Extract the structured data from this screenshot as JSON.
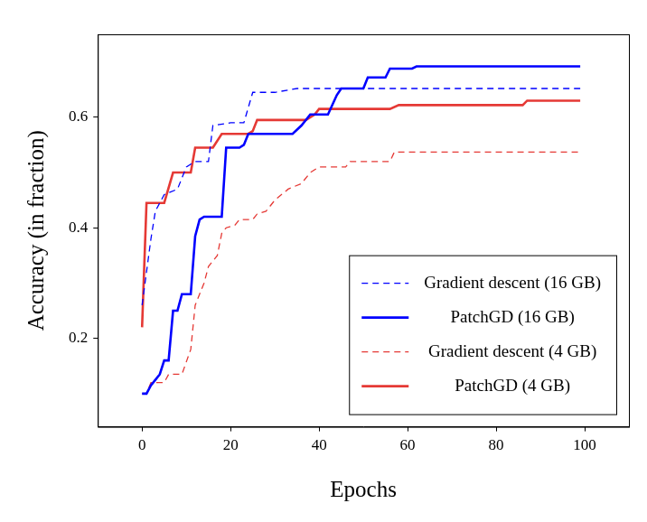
{
  "chart_data": {
    "type": "line",
    "x_label": "Epochs",
    "y_label": "Accuracy (in fraction)",
    "xlim": [
      -10,
      110
    ],
    "xticks": [
      0,
      20,
      40,
      60,
      80,
      100
    ],
    "ylim": [
      0.04,
      0.75
    ],
    "yticks": [
      0.2,
      0.4,
      0.6
    ],
    "grid": false,
    "legend": "lower right",
    "series": [
      {
        "name": "Gradient descent (16 GB)",
        "color": "#0000ff",
        "line_style": "dashed",
        "x": [
          0,
          2,
          3,
          5,
          8,
          10,
          12,
          15,
          16,
          20,
          23,
          25,
          30,
          35,
          99
        ],
        "values": [
          0.26,
          0.38,
          0.43,
          0.46,
          0.47,
          0.51,
          0.52,
          0.52,
          0.585,
          0.59,
          0.59,
          0.645,
          0.645,
          0.652,
          0.652
        ]
      },
      {
        "name": "PatchGD (16 GB)",
        "color": "#0000ff",
        "line_style": "solid",
        "x": [
          0,
          1,
          2,
          3,
          4,
          5,
          6,
          7,
          8,
          9,
          11,
          12,
          13,
          14,
          18,
          19,
          22,
          23,
          24,
          34,
          36,
          38,
          42,
          44,
          45,
          50,
          51,
          55,
          56,
          61,
          62,
          99
        ],
        "values": [
          0.1,
          0.1,
          0.115,
          0.125,
          0.135,
          0.16,
          0.16,
          0.25,
          0.25,
          0.28,
          0.28,
          0.385,
          0.415,
          0.42,
          0.42,
          0.545,
          0.545,
          0.55,
          0.57,
          0.57,
          0.585,
          0.605,
          0.605,
          0.64,
          0.652,
          0.652,
          0.672,
          0.672,
          0.688,
          0.688,
          0.692,
          0.692
        ]
      },
      {
        "name": "Gradient descent (4 GB)",
        "color": "#e53935",
        "line_style": "dashed",
        "x": [
          0,
          1,
          2,
          5,
          6,
          9,
          11,
          12,
          14,
          15,
          17,
          18,
          19,
          21,
          22,
          25,
          26,
          28,
          30,
          33,
          36,
          38,
          40,
          46,
          47,
          56,
          57,
          99
        ],
        "values": [
          0.1,
          0.1,
          0.12,
          0.12,
          0.135,
          0.135,
          0.18,
          0.26,
          0.3,
          0.33,
          0.35,
          0.39,
          0.4,
          0.405,
          0.415,
          0.415,
          0.425,
          0.43,
          0.45,
          0.47,
          0.48,
          0.5,
          0.51,
          0.51,
          0.52,
          0.52,
          0.537,
          0.537
        ]
      },
      {
        "name": "PatchGD (4 GB)",
        "color": "#e53935",
        "line_style": "solid",
        "x": [
          0,
          1,
          5,
          7,
          11,
          12,
          16,
          18,
          24,
          25,
          26,
          37,
          39,
          40,
          56,
          58,
          86,
          87,
          99
        ],
        "values": [
          0.22,
          0.445,
          0.445,
          0.5,
          0.5,
          0.545,
          0.545,
          0.57,
          0.57,
          0.575,
          0.595,
          0.595,
          0.605,
          0.615,
          0.615,
          0.622,
          0.622,
          0.63,
          0.63
        ]
      }
    ]
  }
}
